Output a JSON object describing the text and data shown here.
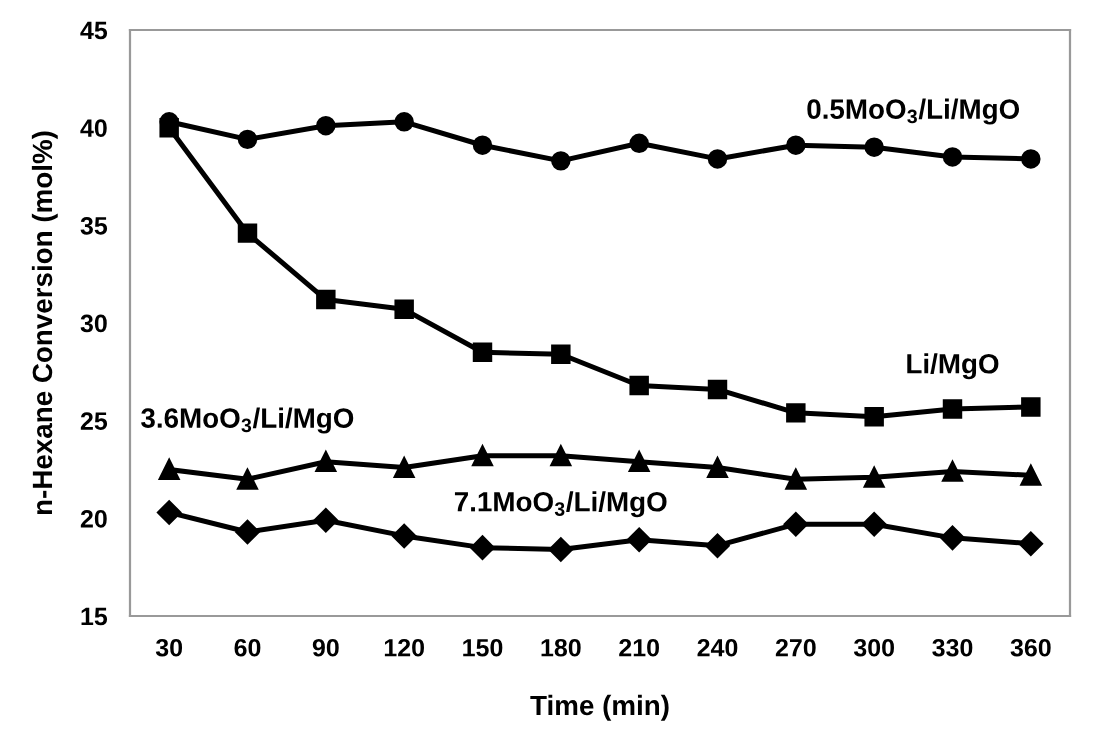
{
  "chart_data": {
    "type": "line",
    "xlabel": "Time (min)",
    "ylabel": "n-Hexane Conversion (mol%)",
    "categories": [
      "30",
      "60",
      "90",
      "120",
      "150",
      "180",
      "210",
      "240",
      "270",
      "300",
      "330",
      "360"
    ],
    "ylim": [
      15,
      45
    ],
    "yticks": [
      15,
      20,
      25,
      30,
      35,
      40,
      45
    ],
    "grid": false,
    "legend": false,
    "line_style": "solid",
    "series": [
      {
        "name": "0.5MoO$_{3}$/Li/MgO",
        "color": "#000000",
        "marker": "circle",
        "values": [
          40.3,
          39.4,
          40.1,
          40.3,
          39.1,
          38.3,
          39.2,
          38.4,
          39.1,
          39.0,
          38.5,
          38.4
        ]
      },
      {
        "name": "Li/MgO",
        "color": "#000000",
        "marker": "square",
        "values": [
          40.0,
          34.6,
          31.2,
          30.7,
          28.5,
          28.4,
          26.8,
          26.6,
          25.4,
          25.2,
          25.6,
          25.7
        ]
      },
      {
        "name": "3.6MoO$_{3}$/Li/MgO",
        "color": "#000000",
        "marker": "triangle",
        "values": [
          22.5,
          22.0,
          22.9,
          22.6,
          23.2,
          23.2,
          22.9,
          22.6,
          22.0,
          22.1,
          22.4,
          22.2
        ]
      },
      {
        "name": "7.1MoO$_{3}$/Li/MgO",
        "color": "#000000",
        "marker": "diamond",
        "values": [
          20.3,
          19.3,
          19.9,
          19.1,
          18.5,
          18.4,
          18.9,
          18.6,
          19.7,
          19.7,
          19.0,
          18.7
        ]
      }
    ]
  }
}
